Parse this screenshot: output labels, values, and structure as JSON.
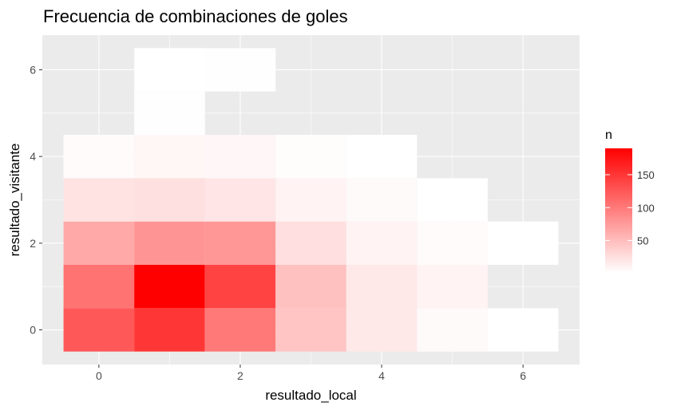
{
  "chart_data": {
    "type": "heatmap",
    "title": "Frecuencia de combinaciones de goles",
    "xlabel": "resultado_local",
    "ylabel": "resultado_visitante",
    "xlim": [
      -0.8,
      6.8
    ],
    "ylim": [
      -0.8,
      6.8
    ],
    "x_ticks": [
      0,
      2,
      4,
      6
    ],
    "y_ticks": [
      0,
      2,
      4,
      6
    ],
    "legend": {
      "title": "n",
      "position": "right",
      "min": 1,
      "max": 190,
      "ticks": [
        50,
        100,
        150
      ],
      "low_color": "#ffffff",
      "high_color": "#ff0000"
    },
    "cells": [
      {
        "x": 0,
        "y": 0,
        "n": 125
      },
      {
        "x": 1,
        "y": 0,
        "n": 150
      },
      {
        "x": 2,
        "y": 0,
        "n": 100
      },
      {
        "x": 3,
        "y": 0,
        "n": 45
      },
      {
        "x": 4,
        "y": 0,
        "n": 18
      },
      {
        "x": 5,
        "y": 0,
        "n": 5
      },
      {
        "x": 6,
        "y": 0,
        "n": 1
      },
      {
        "x": 0,
        "y": 1,
        "n": 105
      },
      {
        "x": 1,
        "y": 1,
        "n": 190
      },
      {
        "x": 2,
        "y": 1,
        "n": 140
      },
      {
        "x": 3,
        "y": 1,
        "n": 48
      },
      {
        "x": 4,
        "y": 1,
        "n": 18
      },
      {
        "x": 5,
        "y": 1,
        "n": 10
      },
      {
        "x": 0,
        "y": 2,
        "n": 65
      },
      {
        "x": 1,
        "y": 2,
        "n": 80
      },
      {
        "x": 2,
        "y": 2,
        "n": 78
      },
      {
        "x": 3,
        "y": 2,
        "n": 25
      },
      {
        "x": 4,
        "y": 2,
        "n": 10
      },
      {
        "x": 5,
        "y": 2,
        "n": 4
      },
      {
        "x": 6,
        "y": 2,
        "n": 1
      },
      {
        "x": 0,
        "y": 3,
        "n": 22
      },
      {
        "x": 1,
        "y": 3,
        "n": 24
      },
      {
        "x": 2,
        "y": 3,
        "n": 20
      },
      {
        "x": 3,
        "y": 3,
        "n": 10
      },
      {
        "x": 4,
        "y": 3,
        "n": 5
      },
      {
        "x": 5,
        "y": 3,
        "n": 1
      },
      {
        "x": 0,
        "y": 4,
        "n": 4
      },
      {
        "x": 1,
        "y": 4,
        "n": 8
      },
      {
        "x": 2,
        "y": 4,
        "n": 7
      },
      {
        "x": 3,
        "y": 4,
        "n": 3
      },
      {
        "x": 4,
        "y": 4,
        "n": 1
      },
      {
        "x": 1,
        "y": 5,
        "n": 2
      },
      {
        "x": 1,
        "y": 6,
        "n": 1
      },
      {
        "x": 2,
        "y": 6,
        "n": 2
      }
    ]
  }
}
